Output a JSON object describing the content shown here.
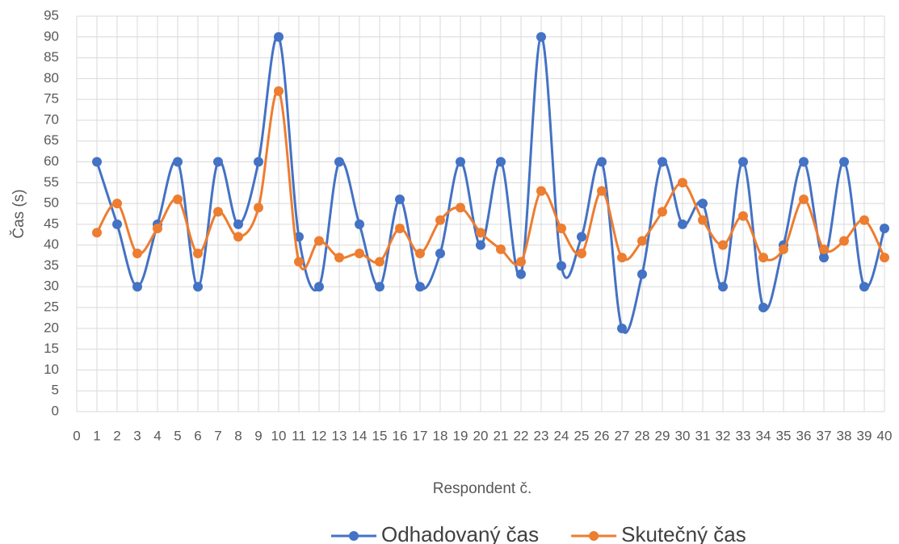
{
  "chart_data": {
    "type": "scatter-smooth",
    "xlabel": "Respondent č.",
    "ylabel": "Čas (s)",
    "x": [
      1,
      2,
      3,
      4,
      5,
      6,
      7,
      8,
      9,
      10,
      11,
      12,
      13,
      14,
      15,
      16,
      17,
      18,
      19,
      20,
      21,
      22,
      23,
      24,
      25,
      26,
      27,
      28,
      29,
      30,
      31,
      32,
      33,
      34,
      35,
      36,
      37,
      38,
      39,
      40
    ],
    "series": [
      {
        "name": "Odhadovaný čas",
        "color": "#4472c4",
        "values": [
          60,
          45,
          30,
          45,
          60,
          30,
          60,
          45,
          60,
          90,
          42,
          30,
          60,
          45,
          30,
          51,
          30,
          38,
          60,
          40,
          60,
          33,
          90,
          35,
          42,
          60,
          20,
          33,
          60,
          45,
          50,
          30,
          60,
          25,
          40,
          60,
          37,
          60,
          30,
          44
        ]
      },
      {
        "name": "Skutečný čas",
        "color": "#ed7d31",
        "values": [
          43,
          50,
          38,
          44,
          51,
          38,
          48,
          42,
          49,
          77,
          36,
          41,
          37,
          38,
          36,
          44,
          38,
          46,
          49,
          43,
          39,
          36,
          53,
          44,
          38,
          53,
          37,
          41,
          48,
          55,
          46,
          40,
          47,
          37,
          39,
          51,
          39,
          41,
          46,
          37
        ]
      }
    ],
    "xlim": [
      0,
      40
    ],
    "xticks": [
      0,
      1,
      2,
      3,
      4,
      5,
      6,
      7,
      8,
      9,
      10,
      11,
      12,
      13,
      14,
      15,
      16,
      17,
      18,
      19,
      20,
      21,
      22,
      23,
      24,
      25,
      26,
      27,
      28,
      29,
      30,
      31,
      32,
      33,
      34,
      35,
      36,
      37,
      38,
      39,
      40
    ],
    "ylim": [
      0,
      95
    ],
    "yticks": [
      0,
      5,
      10,
      15,
      20,
      25,
      30,
      35,
      40,
      45,
      50,
      55,
      60,
      65,
      70,
      75,
      80,
      85,
      90,
      95
    ],
    "grid": true,
    "legend": "bottom"
  }
}
